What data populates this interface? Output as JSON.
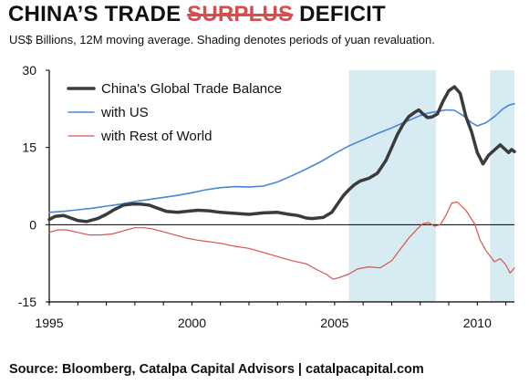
{
  "header": {
    "title_part1": "CHINA’S TRADE ",
    "title_strike": "SURPLUS",
    "title_part2": " DEFICIT",
    "subtitle": "US$ Billions, 12M moving average. Shading denotes periods of yuan revaluation."
  },
  "footer": {
    "source": "Source: Bloomberg, Catalpa Capital Advisors | catalpacapital.com"
  },
  "colors": {
    "global": "#3b3b3b",
    "us": "#4a86d8",
    "row": "#d9534f",
    "shade": "#d7ebf2",
    "zero_line": "#000000",
    "axis": "#000000"
  },
  "chart_data": {
    "type": "line",
    "title": "",
    "xlabel": "",
    "ylabel": "",
    "xlim": [
      1995,
      2011.3
    ],
    "ylim": [
      -15,
      30
    ],
    "y_ticks": [
      -15,
      0,
      15,
      30
    ],
    "x_ticks": [
      1995,
      2000,
      2005,
      2010
    ],
    "grid": false,
    "legend_position": "top-left",
    "shaded_periods": [
      {
        "start": 2005.5,
        "end": 2008.55
      },
      {
        "start": 2010.45,
        "end": 2011.3
      }
    ],
    "series": [
      {
        "name": "China's Global Trade Balance",
        "color": "#3b3b3b",
        "width": 3.5,
        "x": [
          1995.0,
          1995.2,
          1995.5,
          1995.7,
          1996.0,
          1996.3,
          1996.7,
          1997.0,
          1997.3,
          1997.6,
          1997.9,
          1998.2,
          1998.5,
          1998.8,
          1999.1,
          1999.5,
          1999.8,
          2000.2,
          2000.6,
          2001.0,
          2001.5,
          2002.0,
          2002.5,
          2003.0,
          2003.4,
          2003.7,
          2004.0,
          2004.2,
          2004.6,
          2004.9,
          2005.1,
          2005.3,
          2005.5,
          2005.7,
          2005.9,
          2006.2,
          2006.5,
          2006.8,
          2007.0,
          2007.2,
          2007.4,
          2007.6,
          2007.8,
          2007.95,
          2008.1,
          2008.25,
          2008.4,
          2008.6,
          2008.8,
          2009.0,
          2009.2,
          2009.4,
          2009.6,
          2009.8,
          2010.0,
          2010.2,
          2010.4,
          2010.6,
          2010.8,
          2011.0,
          2011.1,
          2011.2,
          2011.3
        ],
        "values": [
          1.0,
          1.6,
          1.8,
          1.4,
          0.8,
          0.6,
          1.2,
          2.0,
          3.0,
          3.8,
          4.0,
          4.0,
          3.8,
          3.2,
          2.6,
          2.4,
          2.6,
          2.8,
          2.7,
          2.4,
          2.2,
          2.0,
          2.3,
          2.4,
          2.0,
          1.8,
          1.3,
          1.2,
          1.4,
          2.4,
          4.0,
          5.6,
          6.8,
          7.8,
          8.5,
          9.0,
          10.0,
          12.5,
          15.0,
          17.5,
          19.5,
          21.0,
          21.8,
          22.3,
          21.5,
          20.8,
          20.9,
          21.5,
          24.0,
          26.0,
          26.8,
          25.5,
          21.0,
          18.0,
          14.0,
          11.8,
          13.5,
          14.5,
          15.5,
          14.5,
          14.0,
          14.6,
          14.2
        ]
      },
      {
        "name": "with US",
        "color": "#4a86d8",
        "width": 1.6,
        "x": [
          1995.0,
          1995.5,
          1996.0,
          1996.5,
          1997.0,
          1997.5,
          1998.0,
          1998.5,
          1999.0,
          1999.5,
          2000.0,
          2000.5,
          2001.0,
          2001.5,
          2002.0,
          2002.5,
          2003.0,
          2003.5,
          2004.0,
          2004.5,
          2005.0,
          2005.5,
          2006.0,
          2006.5,
          2007.0,
          2007.5,
          2008.0,
          2008.3,
          2008.6,
          2008.9,
          2009.2,
          2009.5,
          2009.8,
          2010.0,
          2010.3,
          2010.6,
          2010.9,
          2011.1,
          2011.3
        ],
        "values": [
          2.4,
          2.6,
          2.9,
          3.2,
          3.6,
          4.0,
          4.5,
          4.9,
          5.3,
          5.7,
          6.2,
          6.8,
          7.2,
          7.4,
          7.3,
          7.5,
          8.3,
          9.5,
          10.8,
          12.2,
          13.8,
          15.3,
          16.5,
          17.7,
          18.8,
          20.0,
          21.2,
          21.7,
          22.0,
          22.3,
          22.2,
          21.2,
          19.8,
          19.2,
          19.8,
          21.0,
          22.5,
          23.2,
          23.5
        ]
      },
      {
        "name": "with Rest of World",
        "color": "#d9534f",
        "width": 1.2,
        "x": [
          1995.0,
          1995.3,
          1995.6,
          1996.0,
          1996.4,
          1996.8,
          1997.2,
          1997.6,
          1998.0,
          1998.3,
          1998.6,
          1999.0,
          1999.4,
          1999.8,
          2000.2,
          2000.6,
          2001.0,
          2001.5,
          2002.0,
          2002.5,
          2003.0,
          2003.5,
          2004.0,
          2004.4,
          2004.7,
          2004.95,
          2005.2,
          2005.5,
          2005.8,
          2006.2,
          2006.6,
          2007.0,
          2007.3,
          2007.6,
          2007.9,
          2008.1,
          2008.3,
          2008.5,
          2008.7,
          2008.9,
          2009.1,
          2009.3,
          2009.6,
          2009.9,
          2010.1,
          2010.3,
          2010.6,
          2010.8,
          2011.0,
          2011.15,
          2011.3
        ],
        "values": [
          -1.5,
          -1.0,
          -1.0,
          -1.5,
          -2.0,
          -2.0,
          -1.8,
          -1.2,
          -0.6,
          -0.6,
          -0.8,
          -1.4,
          -2.0,
          -2.6,
          -3.0,
          -3.3,
          -3.6,
          -4.2,
          -4.6,
          -5.4,
          -6.2,
          -7.0,
          -7.6,
          -8.8,
          -9.6,
          -10.6,
          -10.2,
          -9.6,
          -8.6,
          -8.2,
          -8.4,
          -7.0,
          -4.8,
          -2.6,
          -0.8,
          0.2,
          0.4,
          -0.3,
          0.0,
          1.8,
          4.2,
          4.4,
          2.8,
          0.2,
          -3.0,
          -5.0,
          -7.2,
          -6.6,
          -7.8,
          -9.4,
          -8.4
        ]
      }
    ]
  }
}
